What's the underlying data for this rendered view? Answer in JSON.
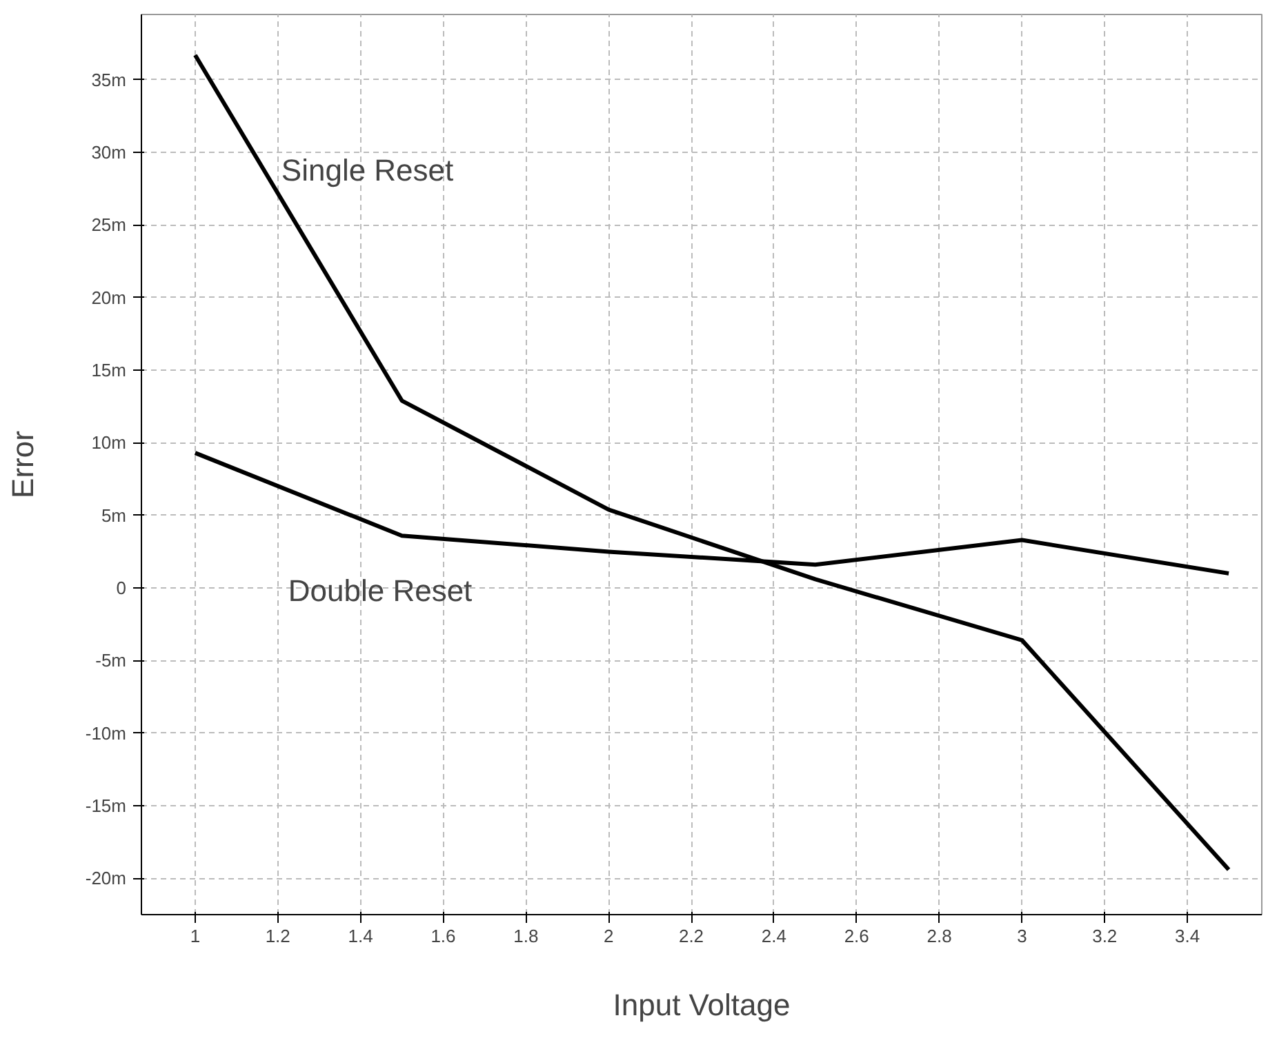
{
  "chart_data": {
    "type": "line",
    "xlabel": "Input Voltage",
    "ylabel": "Error",
    "x": [
      1,
      1.5,
      2,
      2.5,
      3,
      3.5
    ],
    "series": [
      {
        "name": "Single Reset",
        "color": "#000000",
        "values": [
          36.7,
          12.9,
          5.4,
          0.6,
          -3.6,
          -19.4
        ]
      },
      {
        "name": "Double Reset",
        "color": "#000000",
        "values": [
          9.3,
          3.6,
          2.5,
          1.6,
          3.3,
          1.0
        ]
      }
    ],
    "xlim": [
      0.87,
      3.58
    ],
    "ylim": [
      -22.5,
      39.5
    ],
    "xticks": [
      1,
      1.2,
      1.4,
      1.6,
      1.8,
      2,
      2.2,
      2.4,
      2.6,
      2.8,
      3,
      3.2,
      3.4
    ],
    "yticks": [
      {
        "value": -20,
        "label": "-20m"
      },
      {
        "value": -15,
        "label": "-15m"
      },
      {
        "value": -10,
        "label": "-10m"
      },
      {
        "value": -5,
        "label": "-5m"
      },
      0,
      {
        "value": 5,
        "label": "5m"
      },
      {
        "value": 10,
        "label": "10m"
      },
      {
        "value": 15,
        "label": "15m"
      },
      {
        "value": 20,
        "label": "20m"
      },
      {
        "value": 25,
        "label": "25m"
      },
      {
        "value": 30,
        "label": "30m"
      },
      {
        "value": 35,
        "label": "35m"
      }
    ],
    "grid": true,
    "marker": "none",
    "line_style": "solid"
  }
}
